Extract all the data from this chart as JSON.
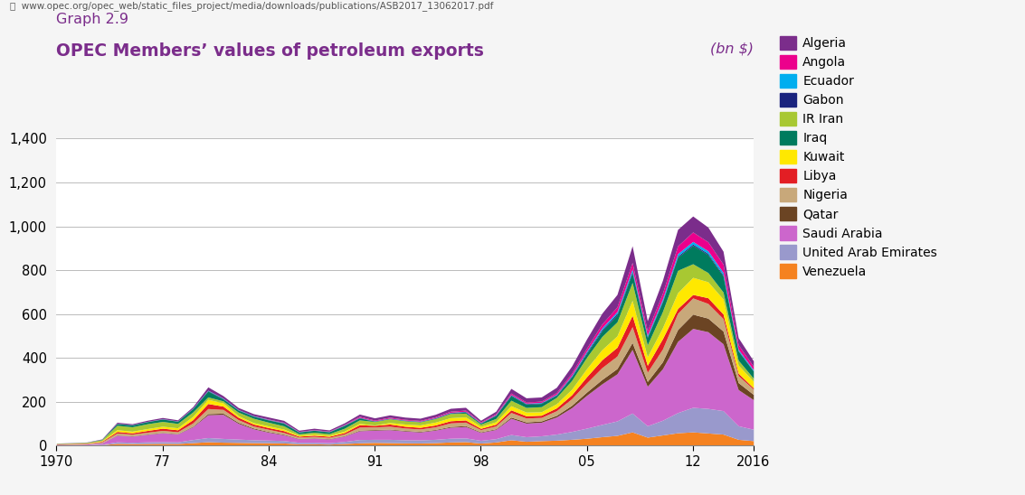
{
  "title_line1": "Graph 2.9",
  "title_line2": "OPEC Members’ values of petroleum exports",
  "unit": "(bn $)",
  "url": "www.opec.org/opec_web/static_files_project/media/downloads/publications/ASB2017_13062017.pdf",
  "years": [
    1970,
    1971,
    1972,
    1973,
    1974,
    1975,
    1976,
    1977,
    1978,
    1979,
    1980,
    1981,
    1982,
    1983,
    1984,
    1985,
    1986,
    1987,
    1988,
    1989,
    1990,
    1991,
    1992,
    1993,
    1994,
    1995,
    1996,
    1997,
    1998,
    1999,
    2000,
    2001,
    2002,
    2003,
    2004,
    2005,
    2006,
    2007,
    2008,
    2009,
    2010,
    2011,
    2012,
    2013,
    2014,
    2015,
    2016
  ],
  "stack_order": [
    "Venezuela",
    "United Arab Emirates",
    "Saudi Arabia",
    "Qatar",
    "Nigeria",
    "Libya",
    "Kuwait",
    "IR Iran",
    "Iraq",
    "Gabon",
    "Ecuador",
    "Angola",
    "Algeria"
  ],
  "legend_order": [
    "Algeria",
    "Angola",
    "Ecuador",
    "Gabon",
    "IR Iran",
    "Iraq",
    "Kuwait",
    "Libya",
    "Nigeria",
    "Qatar",
    "Saudi Arabia",
    "United Arab Emirates",
    "Venezuela"
  ],
  "colors": {
    "Venezuela": "#F58220",
    "United Arab Emirates": "#9999CC",
    "Saudi Arabia": "#CC66CC",
    "Qatar": "#6B4423",
    "Nigeria": "#C8A87A",
    "Libya": "#E31E24",
    "Kuwait": "#FFE800",
    "IR Iran": "#A8C832",
    "Iraq": "#007B5E",
    "Gabon": "#1A237E",
    "Ecuador": "#00AEEF",
    "Angola": "#EC008C",
    "Algeria": "#7B2D8B"
  },
  "data": {
    "Venezuela": [
      2.0,
      2.2,
      2.4,
      3.5,
      9.5,
      8.5,
      9.0,
      9.5,
      9.0,
      13.0,
      17.0,
      15.0,
      14.0,
      13.0,
      12.5,
      11.5,
      7.5,
      7.5,
      6.0,
      9.0,
      12.0,
      14.0,
      13.0,
      12.0,
      11.5,
      13.0,
      16.0,
      17.5,
      11.0,
      16.0,
      26.0,
      19.0,
      22.0,
      24.0,
      28.0,
      33.0,
      40.0,
      46.0,
      62.0,
      38.0,
      48.0,
      58.0,
      62.0,
      57.0,
      52.0,
      28.0,
      22.0
    ],
    "United Arab Emirates": [
      0.5,
      0.7,
      1.0,
      2.2,
      7.0,
      6.0,
      7.5,
      8.0,
      7.5,
      14.0,
      19.0,
      17.0,
      15.0,
      13.0,
      12.0,
      11.0,
      7.0,
      7.0,
      6.5,
      9.5,
      15.0,
      14.0,
      15.0,
      14.0,
      14.0,
      15.0,
      17.0,
      17.0,
      12.5,
      15.0,
      24.0,
      21.0,
      22.0,
      28.0,
      36.0,
      46.0,
      56.0,
      66.0,
      86.0,
      52.0,
      67.0,
      92.0,
      112.0,
      112.0,
      107.0,
      62.0,
      52.0
    ],
    "Saudi Arabia": [
      1.8,
      2.2,
      3.0,
      6.0,
      30.0,
      28.0,
      34.0,
      40.0,
      36.0,
      58.0,
      104.0,
      110.0,
      72.0,
      50.0,
      36.0,
      26.0,
      16.0,
      19.0,
      17.0,
      24.0,
      40.0,
      42.0,
      44.0,
      40.0,
      36.0,
      42.0,
      50.0,
      52.0,
      36.0,
      42.0,
      74.0,
      62.0,
      62.0,
      78.0,
      108.0,
      150.0,
      185.0,
      215.0,
      290.0,
      180.0,
      235.0,
      325.0,
      360.0,
      350.0,
      305.0,
      165.0,
      135.0
    ],
    "Qatar": [
      0.1,
      0.1,
      0.2,
      0.4,
      1.5,
      1.4,
      1.6,
      1.8,
      1.6,
      2.8,
      5.5,
      5.5,
      4.8,
      3.8,
      3.2,
      2.8,
      1.6,
      1.6,
      1.6,
      2.0,
      2.8,
      2.8,
      2.8,
      2.8,
      2.8,
      3.0,
      3.8,
      4.0,
      2.8,
      3.2,
      5.5,
      5.5,
      6.0,
      7.5,
      11.0,
      15.0,
      20.0,
      24.0,
      32.0,
      22.0,
      32.0,
      54.0,
      65.0,
      62.0,
      58.0,
      32.0,
      24.0
    ],
    "Nigeria": [
      1.0,
      1.4,
      2.0,
      4.0,
      9.0,
      8.0,
      8.5,
      9.5,
      8.5,
      15.0,
      23.0,
      17.0,
      12.0,
      9.0,
      10.0,
      8.0,
      6.0,
      6.5,
      6.0,
      8.0,
      14.0,
      12.0,
      13.0,
      11.0,
      11.0,
      12.0,
      16.0,
      16.0,
      10.0,
      13.0,
      21.0,
      18.0,
      16.0,
      21.0,
      30.0,
      42.0,
      54.0,
      57.0,
      72.0,
      42.0,
      58.0,
      74.0,
      74.0,
      67.0,
      57.0,
      32.0,
      24.0
    ],
    "Libya": [
      1.8,
      2.0,
      1.8,
      3.0,
      7.0,
      6.0,
      8.0,
      10.0,
      9.0,
      15.0,
      23.0,
      15.0,
      11.0,
      9.0,
      8.0,
      8.5,
      4.5,
      5.5,
      5.0,
      6.5,
      11.0,
      7.0,
      10.0,
      8.0,
      7.5,
      8.5,
      10.0,
      10.0,
      6.0,
      8.0,
      12.0,
      10.0,
      10.0,
      13.0,
      18.0,
      28.0,
      36.0,
      40.0,
      52.0,
      32.0,
      47.0,
      22.0,
      16.0,
      26.0,
      21.0,
      11.0,
      6.0
    ],
    "Kuwait": [
      1.0,
      1.2,
      1.4,
      2.5,
      8.0,
      7.5,
      8.5,
      9.0,
      9.0,
      15.0,
      19.0,
      15.0,
      7.5,
      6.5,
      7.5,
      7.0,
      4.5,
      5.0,
      4.5,
      6.5,
      6.0,
      1.5,
      7.0,
      10.0,
      11.0,
      13.0,
      14.0,
      14.0,
      9.0,
      11.0,
      19.0,
      17.0,
      16.0,
      19.0,
      25.0,
      37.0,
      46.0,
      52.0,
      68.0,
      39.0,
      50.0,
      72.0,
      78.0,
      73.0,
      68.0,
      37.0,
      30.0
    ],
    "IR Iran": [
      1.2,
      1.5,
      2.2,
      4.5,
      20.0,
      20.0,
      22.0,
      22.0,
      20.0,
      20.0,
      11.0,
      9.0,
      16.0,
      20.0,
      17.0,
      15.0,
      6.5,
      8.5,
      7.5,
      13.0,
      16.0,
      16.0,
      17.0,
      15.0,
      14.0,
      16.0,
      19.0,
      17.0,
      10.0,
      15.0,
      25.0,
      21.0,
      23.0,
      29.0,
      40.0,
      52.0,
      60.0,
      64.0,
      82.0,
      54.0,
      74.0,
      102.0,
      62.0,
      42.0,
      32.0,
      22.0,
      14.0
    ],
    "Iraq": [
      0.6,
      0.7,
      0.8,
      1.8,
      7.5,
      8.5,
      9.5,
      10.5,
      10.0,
      15.0,
      27.0,
      9.0,
      9.0,
      9.0,
      10.0,
      12.0,
      7.5,
      8.5,
      8.0,
      13.0,
      9.0,
      0.8,
      0.8,
      0.8,
      0.8,
      1.5,
      1.5,
      4.5,
      4.5,
      14.0,
      21.0,
      15.0,
      15.0,
      9.0,
      16.0,
      18.0,
      26.0,
      32.0,
      44.0,
      34.0,
      44.0,
      60.0,
      84.0,
      82.0,
      74.0,
      42.0,
      32.0
    ],
    "Gabon": [
      0.1,
      0.1,
      0.1,
      0.2,
      0.9,
      0.9,
      1.0,
      1.1,
      0.9,
      1.6,
      2.2,
      2.2,
      1.6,
      1.6,
      1.6,
      1.6,
      1.1,
      1.1,
      1.1,
      1.4,
      2.2,
      1.6,
      1.6,
      1.6,
      1.6,
      2.0,
      2.7,
      2.7,
      1.6,
      2.2,
      3.2,
      2.7,
      2.7,
      3.2,
      4.3,
      5.4,
      5.9,
      6.5,
      7.6,
      4.3,
      4.9,
      5.4,
      5.9,
      5.4,
      4.9,
      2.7,
      2.2
    ],
    "Ecuador": [
      0.0,
      0.0,
      0.0,
      0.1,
      0.6,
      0.5,
      0.6,
      0.7,
      0.6,
      1.1,
      1.6,
      1.6,
      1.4,
      1.3,
      1.3,
      1.1,
      0.9,
      0.9,
      0.8,
      1.1,
      1.1,
      1.1,
      1.1,
      1.1,
      1.1,
      1.3,
      1.6,
      1.6,
      1.1,
      1.6,
      2.2,
      1.9,
      2.2,
      2.7,
      3.8,
      5.4,
      7.0,
      8.1,
      10.3,
      6.5,
      8.7,
      10.8,
      11.9,
      11.9,
      10.8,
      5.9,
      4.9
    ],
    "Angola": [
      0.0,
      0.0,
      0.0,
      0.0,
      0.0,
      0.0,
      0.0,
      0.0,
      0.0,
      0.0,
      0.0,
      0.0,
      0.0,
      0.0,
      1.6,
      1.6,
      1.1,
      1.6,
      1.6,
      2.2,
      4.3,
      3.2,
      3.8,
      3.2,
      3.2,
      3.8,
      4.9,
      4.9,
      3.2,
      4.3,
      6.5,
      5.4,
      5.4,
      7.0,
      9.7,
      12.9,
      18.3,
      21.5,
      29.1,
      19.4,
      25.8,
      35.5,
      43.0,
      40.9,
      37.6,
      20.4,
      15.1
    ],
    "Algeria": [
      0.6,
      0.7,
      0.8,
      1.7,
      5.0,
      4.0,
      5.0,
      5.5,
      5.0,
      6.5,
      15.0,
      11.0,
      9.0,
      9.0,
      9.0,
      8.5,
      5.5,
      6.0,
      5.5,
      7.0,
      10.0,
      10.0,
      10.5,
      10.0,
      10.0,
      11.0,
      13.0,
      13.0,
      7.5,
      11.0,
      21.0,
      19.0,
      19.0,
      24.0,
      32.0,
      42.0,
      49.0,
      57.0,
      76.0,
      46.0,
      59.0,
      75.0,
      73.0,
      67.0,
      59.0,
      32.0,
      25.0
    ]
  },
  "ylim": [
    0,
    1400
  ],
  "yticks": [
    0,
    200,
    400,
    600,
    800,
    1000,
    1200,
    1400
  ],
  "xticks": [
    1970,
    1977,
    1984,
    1991,
    1998,
    2005,
    2012,
    2016
  ],
  "xtick_labels": [
    "1970",
    "77",
    "84",
    "91",
    "98",
    "05",
    "12",
    "2016"
  ],
  "background_color": "#f5f5f5",
  "plot_bg_color": "#ffffff",
  "title_color": "#7B2D8B",
  "grid_color": "#bbbbbb"
}
